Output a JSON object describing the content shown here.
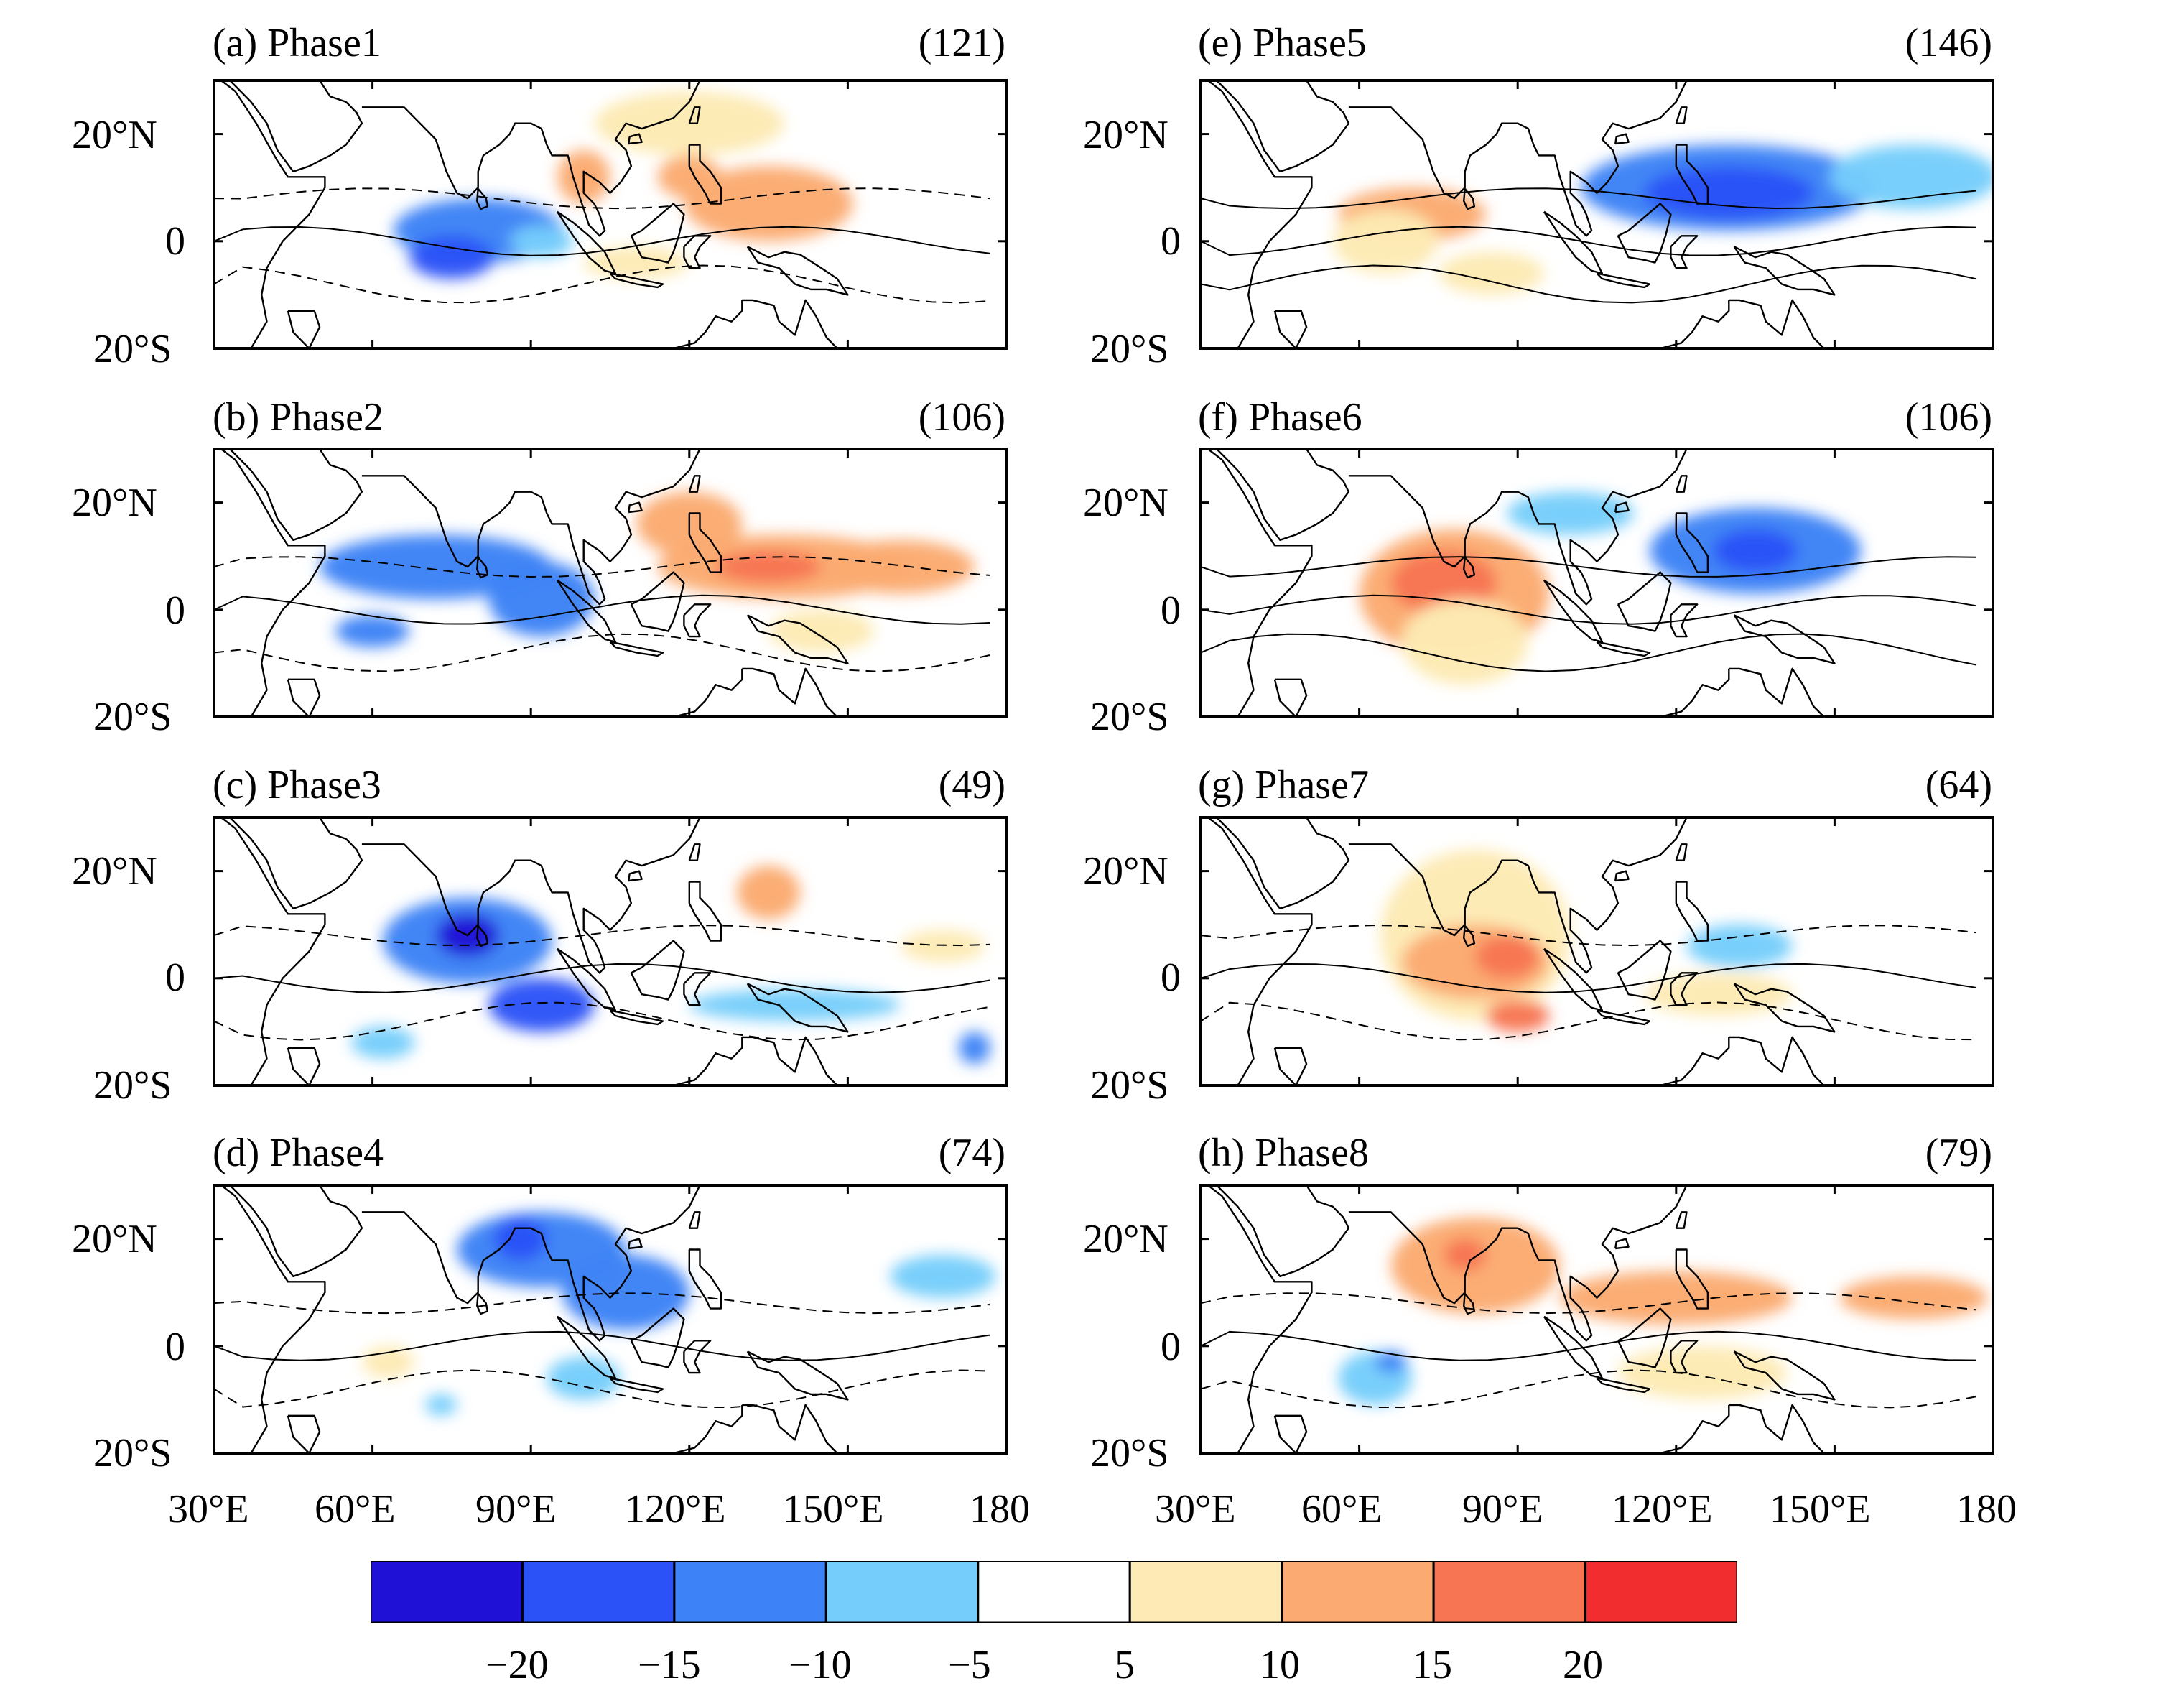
{
  "panels": [
    {
      "id": "a",
      "title": "(a) Phase1",
      "count": "(121)",
      "col": 0,
      "row": 0,
      "contour_label": "2",
      "blobs": [
        {
          "lon": 80,
          "lat": 2,
          "rx": 16,
          "ry": 6,
          "value": -12
        },
        {
          "lon": 75,
          "lat": -3,
          "rx": 8,
          "ry": 4,
          "value": -17
        },
        {
          "lon": 92,
          "lat": 0,
          "rx": 6,
          "ry": 3,
          "value": -10
        },
        {
          "lon": 135,
          "lat": 7,
          "rx": 16,
          "ry": 7,
          "value": 12
        },
        {
          "lon": 120,
          "lat": 12,
          "rx": 6,
          "ry": 4,
          "value": 14
        },
        {
          "lon": 100,
          "lat": 12,
          "rx": 5,
          "ry": 5,
          "value": 11
        },
        {
          "lon": 120,
          "lat": 22,
          "rx": 18,
          "ry": 6,
          "value": 7
        },
        {
          "lon": 110,
          "lat": -4,
          "rx": 10,
          "ry": 3,
          "value": 6
        }
      ]
    },
    {
      "id": "b",
      "title": "(b) Phase2",
      "count": "(106)",
      "col": 0,
      "row": 1,
      "contour_label": "2",
      "blobs": [
        {
          "lon": 72,
          "lat": 8,
          "rx": 22,
          "ry": 6,
          "value": -12
        },
        {
          "lon": 92,
          "lat": 2,
          "rx": 10,
          "ry": 7,
          "value": -14
        },
        {
          "lon": 60,
          "lat": -4,
          "rx": 7,
          "ry": 3,
          "value": -12
        },
        {
          "lon": 138,
          "lat": 8,
          "rx": 24,
          "ry": 6,
          "value": 14
        },
        {
          "lon": 135,
          "lat": 8,
          "rx": 10,
          "ry": 3,
          "value": 19
        },
        {
          "lon": 120,
          "lat": 16,
          "rx": 10,
          "ry": 6,
          "value": 11
        },
        {
          "lon": 160,
          "lat": 8,
          "rx": 14,
          "ry": 5,
          "value": 12
        },
        {
          "lon": 145,
          "lat": -4,
          "rx": 10,
          "ry": 4,
          "value": 6
        }
      ]
    },
    {
      "id": "c",
      "title": "(c) Phase3",
      "count": "(49)",
      "col": 0,
      "row": 2,
      "contour_label": "2",
      "blobs": [
        {
          "lon": 78,
          "lat": 7,
          "rx": 16,
          "ry": 8,
          "value": -15
        },
        {
          "lon": 78,
          "lat": 8,
          "rx": 6,
          "ry": 4,
          "value": -22
        },
        {
          "lon": 92,
          "lat": -5,
          "rx": 10,
          "ry": 5,
          "value": -17
        },
        {
          "lon": 62,
          "lat": -12,
          "rx": 6,
          "ry": 3,
          "value": -8
        },
        {
          "lon": 140,
          "lat": -5,
          "rx": 20,
          "ry": 3,
          "value": -8
        },
        {
          "lon": 135,
          "lat": 16,
          "rx": 6,
          "ry": 5,
          "value": 11
        },
        {
          "lon": 168,
          "lat": 6,
          "rx": 8,
          "ry": 3,
          "value": 7
        },
        {
          "lon": 174,
          "lat": -13,
          "rx": 3,
          "ry": 3,
          "value": -12
        }
      ]
    },
    {
      "id": "d",
      "title": "(d) Phase4",
      "count": "(74)",
      "col": 0,
      "row": 3,
      "contour_label": "",
      "blobs": [
        {
          "lon": 92,
          "lat": 18,
          "rx": 16,
          "ry": 7,
          "value": -12
        },
        {
          "lon": 88,
          "lat": 20,
          "rx": 5,
          "ry": 4,
          "value": -17
        },
        {
          "lon": 108,
          "lat": 10,
          "rx": 12,
          "ry": 7,
          "value": -12
        },
        {
          "lon": 100,
          "lat": -6,
          "rx": 7,
          "ry": 4,
          "value": -8
        },
        {
          "lon": 168,
          "lat": 13,
          "rx": 10,
          "ry": 4,
          "value": -10
        },
        {
          "lon": 63,
          "lat": -3,
          "rx": 5,
          "ry": 3,
          "value": 7
        },
        {
          "lon": 73,
          "lat": -11,
          "rx": 3,
          "ry": 2,
          "value": -10
        }
      ]
    },
    {
      "id": "e",
      "title": "(e) Phase5",
      "count": "(146)",
      "col": 1,
      "row": 0,
      "contour_label": "2",
      "blobs": [
        {
          "lon": 130,
          "lat": 10,
          "rx": 28,
          "ry": 8,
          "value": -12
        },
        {
          "lon": 130,
          "lat": 9,
          "rx": 16,
          "ry": 5,
          "value": -17
        },
        {
          "lon": 165,
          "lat": 12,
          "rx": 16,
          "ry": 6,
          "value": -8
        },
        {
          "lon": 70,
          "lat": 5,
          "rx": 14,
          "ry": 5,
          "value": 12
        },
        {
          "lon": 65,
          "lat": 0,
          "rx": 10,
          "ry": 6,
          "value": 7
        },
        {
          "lon": 85,
          "lat": -6,
          "rx": 10,
          "ry": 4,
          "value": 7
        }
      ]
    },
    {
      "id": "f",
      "title": "(f) Phase6",
      "count": "(106)",
      "col": 1,
      "row": 1,
      "contour_label": "2",
      "blobs": [
        {
          "lon": 78,
          "lat": 3,
          "rx": 18,
          "ry": 12,
          "value": 11
        },
        {
          "lon": 76,
          "lat": 5,
          "rx": 10,
          "ry": 6,
          "value": 18
        },
        {
          "lon": 80,
          "lat": -6,
          "rx": 12,
          "ry": 8,
          "value": 8
        },
        {
          "lon": 135,
          "lat": 11,
          "rx": 20,
          "ry": 8,
          "value": -12
        },
        {
          "lon": 135,
          "lat": 11,
          "rx": 8,
          "ry": 4,
          "value": -18
        },
        {
          "lon": 100,
          "lat": 18,
          "rx": 12,
          "ry": 4,
          "value": -6
        }
      ]
    },
    {
      "id": "g",
      "title": "(g) Phase7",
      "count": "(64)",
      "col": 1,
      "row": 2,
      "contour_label": "2",
      "blobs": [
        {
          "lon": 82,
          "lat": 8,
          "rx": 18,
          "ry": 16,
          "value": 7
        },
        {
          "lon": 82,
          "lat": 3,
          "rx": 14,
          "ry": 7,
          "value": 14
        },
        {
          "lon": 88,
          "lat": 4,
          "rx": 6,
          "ry": 4,
          "value": 19
        },
        {
          "lon": 90,
          "lat": -7,
          "rx": 6,
          "ry": 3,
          "value": 16
        },
        {
          "lon": 132,
          "lat": 6,
          "rx": 10,
          "ry": 4,
          "value": -10
        },
        {
          "lon": 128,
          "lat": -3,
          "rx": 14,
          "ry": 4,
          "value": 6
        }
      ]
    },
    {
      "id": "h",
      "title": "(h) Phase8",
      "count": "(79)",
      "col": 1,
      "row": 3,
      "contour_label": "2",
      "blobs": [
        {
          "lon": 82,
          "lat": 15,
          "rx": 16,
          "ry": 9,
          "value": 12
        },
        {
          "lon": 80,
          "lat": 17,
          "rx": 4,
          "ry": 3,
          "value": 19
        },
        {
          "lon": 120,
          "lat": 9,
          "rx": 22,
          "ry": 5,
          "value": 12
        },
        {
          "lon": 165,
          "lat": 9,
          "rx": 14,
          "ry": 4,
          "value": 12
        },
        {
          "lon": 125,
          "lat": -5,
          "rx": 16,
          "ry": 5,
          "value": 7
        },
        {
          "lon": 63,
          "lat": -6,
          "rx": 7,
          "ry": 5,
          "value": -8
        },
        {
          "lon": 66,
          "lat": -3,
          "rx": 3,
          "ry": 2,
          "value": -12
        }
      ]
    }
  ],
  "axes": {
    "lat_labels": [
      "20°N",
      "0",
      "20°S"
    ],
    "lon_labels": [
      "30°E",
      "60°E",
      "90°E",
      "120°E",
      "150°E",
      "180"
    ]
  },
  "colorbar": {
    "labels": [
      "−20",
      "−15",
      "−10",
      "−5",
      "5",
      "10",
      "15",
      "20"
    ],
    "bins": [
      {
        "min": -99,
        "max": -20,
        "color": "#1f12d6"
      },
      {
        "min": -20,
        "max": -15,
        "color": "#2b52f7"
      },
      {
        "min": -15,
        "max": -10,
        "color": "#3d82f6"
      },
      {
        "min": -10,
        "max": -5,
        "color": "#75cdfb"
      },
      {
        "min": -5,
        "max": 5,
        "color": "#ffffff"
      },
      {
        "min": 5,
        "max": 10,
        "color": "#fdeab4"
      },
      {
        "min": 10,
        "max": 15,
        "color": "#fbaa71"
      },
      {
        "min": 15,
        "max": 20,
        "color": "#f77552"
      },
      {
        "min": 20,
        "max": 99,
        "color": "#f22d30"
      }
    ]
  }
}
